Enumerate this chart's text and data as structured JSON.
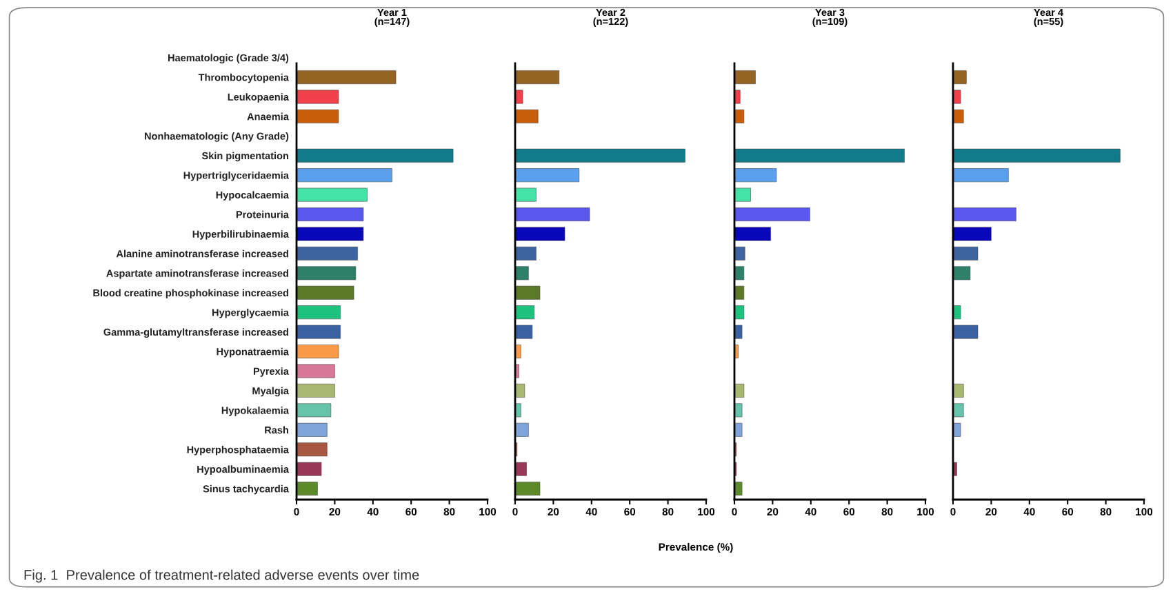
{
  "chart_data": [
    {
      "type": "bar",
      "orientation": "horizontal",
      "title": "Year 1\n(n=147)",
      "categories": [
        "Haematologic (Grade 3/4)",
        "Thrombocytopenia",
        "Leukopaenia",
        "Anaemia",
        "Nonhaematologic (Any Grade)",
        "Skin pigmentation",
        "Hypertriglyceridaemia",
        "Hypocalcaemia",
        "Proteinuria",
        "Hyperbilirubinaemia",
        "Alanine aminotransferase increased",
        "Aspartate aminotransferase increased",
        "Blood creatine phosphokinase increased",
        "Hyperglycaemia",
        "Gamma-glutamyltransferase increased",
        "Hyponatraemia",
        "Pyrexia",
        "Myalgia",
        "Hypokalaemia",
        "Rash",
        "Hyperphosphataemia",
        "Hypoalbuminaemia",
        "Sinus tachycardia"
      ],
      "values": [
        null,
        52,
        22,
        22,
        null,
        82,
        50,
        37,
        35,
        35,
        32,
        31,
        30,
        23,
        23,
        22,
        20,
        20,
        18,
        16,
        16,
        13,
        11
      ],
      "colors": [
        "#000000",
        "#946424",
        "#f0404a",
        "#c85e0a",
        "#000000",
        "#117a8b",
        "#5aa0ef",
        "#44e3a8",
        "#5858ee",
        "#0808b8",
        "#3e64a0",
        "#2e8068",
        "#5c7a2a",
        "#1cc27e",
        "#3a62a2",
        "#f89a48",
        "#d87898",
        "#a8b870",
        "#66c4aa",
        "#80a4da",
        "#a85840",
        "#983858",
        "#5c8a2a"
      ],
      "xlim": [
        0,
        100
      ],
      "xticks": [
        0,
        20,
        40,
        60,
        80,
        100
      ],
      "annotations": [
        "Fig. 1  Prevalence of treatment-related adverse events over time"
      ]
    },
    {
      "type": "bar",
      "orientation": "horizontal",
      "title": "Year 2\n(n=122)",
      "xlabel": "Prevalence (%)",
      "tick_labels": "x",
      "categories": [
        null,
        null,
        null,
        null,
        null,
        null,
        null,
        null,
        null,
        null,
        null,
        null,
        null,
        null,
        null,
        null,
        null,
        null,
        null,
        null,
        null,
        null,
        null
      ],
      "values": [
        null,
        23,
        4,
        12,
        null,
        89,
        33.5,
        11,
        39,
        26,
        11,
        7,
        13,
        10,
        9,
        3,
        2,
        5,
        3,
        7,
        1,
        6,
        13
      ],
      "colors": [
        "#000000",
        "#946424",
        "#f0404a",
        "#c85e0a",
        "#000000",
        "#117a8b",
        "#5aa0ef",
        "#44e3a8",
        "#5858ee",
        "#0808b8",
        "#3e64a0",
        "#2e8068",
        "#5c7a2a",
        "#1cc27e",
        "#3a62a2",
        "#f89a48",
        "#d87898",
        "#a8b870",
        "#66c4aa",
        "#80a4da",
        "#a85840",
        "#983858",
        "#5c8a2a"
      ],
      "xlim": [
        0,
        100
      ],
      "xticks": [
        0,
        20,
        40,
        60,
        80,
        100
      ]
    },
    {
      "type": "bar",
      "orientation": "horizontal",
      "title": "Year 3\n(n=109)",
      "tick_labels": "x",
      "categories": [
        null,
        null,
        null,
        null,
        null,
        null,
        null,
        null,
        null,
        null,
        null,
        null,
        null,
        null,
        null,
        null,
        null,
        null,
        null,
        null,
        null,
        null,
        null
      ],
      "values": [
        null,
        11,
        3,
        5,
        null,
        89,
        22,
        8.5,
        39.5,
        19,
        5.5,
        5,
        5,
        5,
        4,
        2,
        null,
        5,
        4,
        4,
        1,
        1,
        4
      ],
      "colors": [
        "#000000",
        "#946424",
        "#f0404a",
        "#c85e0a",
        "#000000",
        "#117a8b",
        "#5aa0ef",
        "#44e3a8",
        "#5858ee",
        "#0808b8",
        "#3e64a0",
        "#2e8068",
        "#5c7a2a",
        "#1cc27e",
        "#3a62a2",
        "#f89a48",
        "#d87898",
        "#a8b870",
        "#66c4aa",
        "#80a4da",
        "#a85840",
        "#983858",
        "#5c8a2a"
      ],
      "xlim": [
        0,
        100
      ],
      "xticks": [
        0,
        20,
        40,
        60,
        80,
        100
      ]
    },
    {
      "type": "bar",
      "orientation": "horizontal",
      "title": "Year 4\n(n=55)",
      "tick_labels": "x",
      "categories": [
        null,
        null,
        null,
        null,
        null,
        null,
        null,
        null,
        null,
        null,
        null,
        null,
        null,
        null,
        null,
        null,
        null,
        null,
        null,
        null,
        null,
        null,
        null
      ],
      "values": [
        null,
        7,
        4,
        5.5,
        null,
        87.5,
        29,
        null,
        33,
        20,
        13,
        9,
        null,
        4,
        13,
        null,
        null,
        5.5,
        5.5,
        4,
        null,
        2,
        null
      ],
      "colors": [
        "#000000",
        "#946424",
        "#f0404a",
        "#c85e0a",
        "#000000",
        "#117a8b",
        "#5aa0ef",
        "#44e3a8",
        "#5858ee",
        "#0808b8",
        "#3e64a0",
        "#2e8068",
        "#5c7a2a",
        "#1cc27e",
        "#3a62a2",
        "#f89a48",
        "#d87898",
        "#a8b870",
        "#66c4aa",
        "#80a4da",
        "#a85840",
        "#983858",
        "#5c8a2a"
      ],
      "xlim": [
        0,
        100
      ],
      "xticks": [
        0,
        20,
        40,
        60,
        80,
        100
      ]
    }
  ]
}
